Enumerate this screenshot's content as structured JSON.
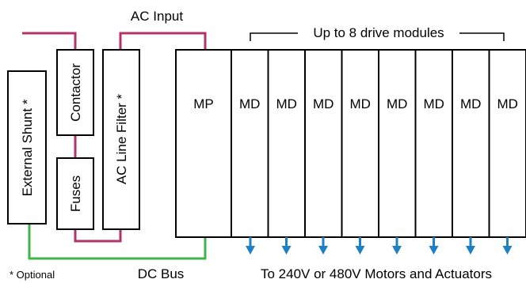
{
  "labels": {
    "ac_input": "AC Input",
    "external_shunt": "External Shunt *",
    "contactor": "Contactor",
    "fuses": "Fuses",
    "ac_line_filter": "AC Line Filter *",
    "mp": "MP",
    "md": "MD",
    "bracket_label": "Up to 8 drive modules",
    "optional_note": "* Optional",
    "dc_bus": "DC Bus",
    "motors_caption": "To 240V or 480V Motors and Actuators"
  },
  "colors": {
    "ac_wire": "#b3336b",
    "dc_wire": "#3fb548",
    "arrow": "#1e7fc3",
    "outline": "#000000"
  },
  "drive_module_count": 8
}
